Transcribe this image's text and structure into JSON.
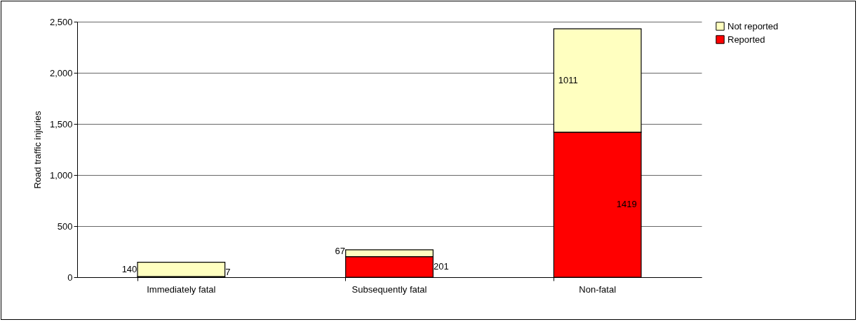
{
  "chart_data": {
    "type": "bar",
    "stacked": true,
    "ylabel": "Road traffic injuries",
    "categories": [
      "Immediately fatal",
      "Subsequently fatal",
      "Non-fatal"
    ],
    "series": [
      {
        "name": "Reported",
        "color": "#ff0000",
        "values": [
          7,
          201,
          1419
        ]
      },
      {
        "name": "Not reported",
        "color": "#ffffc0",
        "values": [
          140,
          67,
          1011
        ]
      }
    ],
    "ylim": [
      0,
      2500
    ],
    "yticks": [
      0,
      {
        "value": 500,
        "label": "500"
      },
      {
        "value": 1000,
        "label": "1,000"
      },
      {
        "value": 1500,
        "label": "1,500"
      },
      {
        "value": 2000,
        "label": "2,000"
      },
      {
        "value": 2500,
        "label": "2,500"
      }
    ],
    "grid": "y",
    "legend": "right",
    "data_labels": true
  }
}
